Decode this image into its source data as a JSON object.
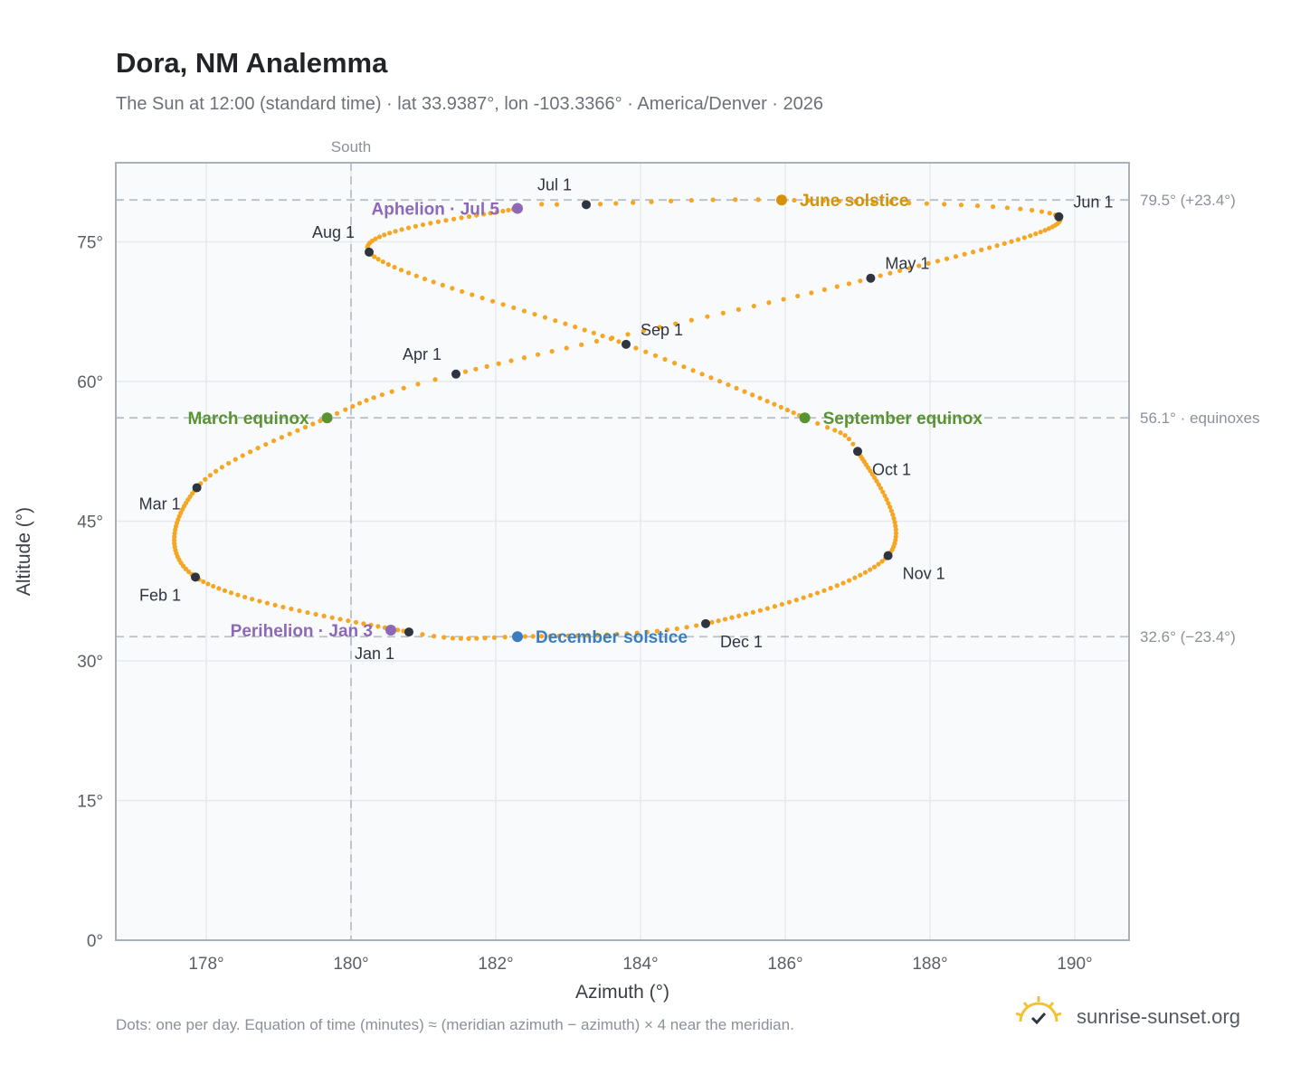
{
  "title": "Dora, NM Analemma",
  "subtitle": "The Sun at 12:00 (standard time) · lat 33.9387°, lon -103.3366° · America/Denver · 2026",
  "footnote": "Dots: one per day. Equation of time (minutes) ≈ (meridian azimuth − azimuth) × 4 near the meridian.",
  "brand": {
    "name": "sunrise-sunset.org",
    "icon": "sun-logo-icon"
  },
  "colors": {
    "path": "#f5a623",
    "month_marker": "#2f3540",
    "solstice_june": "#d4920a",
    "solstice_december": "#3a7ec0",
    "equinox": "#5a9432",
    "apsis": "#8e68b8",
    "reference_line": "#b8c0c8",
    "plot_bg": "#f8fafc",
    "grid": "#e6eaee",
    "frame": "#a8b0ba"
  },
  "chart_data": {
    "type": "scatter",
    "title": "Dora, NM Analemma",
    "xlabel": "Azimuth (°)",
    "ylabel": "Altitude (°)",
    "xlim": [
      176.75,
      190.75
    ],
    "ylim": [
      0,
      83.5
    ],
    "x_ticks": [
      178,
      180,
      182,
      184,
      186,
      188,
      190
    ],
    "x_tick_labels": [
      "178°",
      "180°",
      "182°",
      "184°",
      "186°",
      "188°",
      "190°"
    ],
    "y_ticks": [
      0,
      15,
      30,
      45,
      60,
      75
    ],
    "y_tick_labels": [
      "0°",
      "15°",
      "30°",
      "45°",
      "60°",
      "75°"
    ],
    "grid": true,
    "meridian": {
      "azimuth": 180,
      "label": "South"
    },
    "reference_lines": [
      {
        "altitude": 79.5,
        "label": "79.5° (+23.4°)"
      },
      {
        "altitude": 56.1,
        "label": "56.1° · equinoxes"
      },
      {
        "altitude": 32.6,
        "label": "32.6° (−23.4°)"
      }
    ],
    "daily_path": {
      "description_points": "one dot per day, 365 days",
      "anchors": [
        {
          "day": 0,
          "az": 180.8,
          "alt": 33.1
        },
        {
          "day": 31,
          "az": 177.85,
          "alt": 39.0
        },
        {
          "day": 59,
          "az": 177.87,
          "alt": 48.6
        },
        {
          "day": 78,
          "az": 179.67,
          "alt": 56.1
        },
        {
          "day": 90,
          "az": 181.45,
          "alt": 60.8
        },
        {
          "day": 120,
          "az": 187.18,
          "alt": 71.1
        },
        {
          "day": 151,
          "az": 189.78,
          "alt": 77.7
        },
        {
          "day": 171,
          "az": 185.95,
          "alt": 79.5
        },
        {
          "day": 181,
          "az": 183.25,
          "alt": 79.0
        },
        {
          "day": 184,
          "az": 182.3,
          "alt": 78.6
        },
        {
          "day": 212,
          "az": 180.25,
          "alt": 73.9
        },
        {
          "day": 243,
          "az": 183.8,
          "alt": 64.0
        },
        {
          "day": 265,
          "az": 186.27,
          "alt": 56.1
        },
        {
          "day": 273,
          "az": 187.0,
          "alt": 52.5
        },
        {
          "day": 304,
          "az": 187.42,
          "alt": 41.3
        },
        {
          "day": 334,
          "az": 184.9,
          "alt": 34.0
        },
        {
          "day": 354,
          "az": 182.3,
          "alt": 32.6
        },
        {
          "day": 365,
          "az": 180.8,
          "alt": 33.1
        }
      ]
    },
    "month_markers": [
      {
        "label": "Jan 1",
        "az": 180.8,
        "alt": 33.1,
        "anchor": "below"
      },
      {
        "label": "Feb 1",
        "az": 177.85,
        "alt": 39.0,
        "anchor": "below-left"
      },
      {
        "label": "Mar 1",
        "az": 177.87,
        "alt": 48.6,
        "anchor": "left"
      },
      {
        "label": "Apr 1",
        "az": 181.45,
        "alt": 60.8,
        "anchor": "above-left"
      },
      {
        "label": "May 1",
        "az": 187.18,
        "alt": 71.1,
        "anchor": "above-right"
      },
      {
        "label": "Jun 1",
        "az": 189.78,
        "alt": 77.7,
        "anchor": "above-right"
      },
      {
        "label": "Jul 1",
        "az": 183.25,
        "alt": 79.0,
        "anchor": "above-left"
      },
      {
        "label": "Aug 1",
        "az": 180.25,
        "alt": 73.9,
        "anchor": "above-left"
      },
      {
        "label": "Sep 1",
        "az": 183.8,
        "alt": 64.0,
        "anchor": "above-right"
      },
      {
        "label": "Oct 1",
        "az": 187.0,
        "alt": 52.5,
        "anchor": "below-right"
      },
      {
        "label": "Nov 1",
        "az": 187.42,
        "alt": 41.3,
        "anchor": "below-right"
      },
      {
        "label": "Dec 1",
        "az": 184.9,
        "alt": 34.0,
        "anchor": "below-right"
      }
    ],
    "events": [
      {
        "label": "June solstice",
        "az": 185.95,
        "alt": 79.5,
        "color_key": "solstice_june",
        "side": "right"
      },
      {
        "label": "December solstice",
        "az": 182.3,
        "alt": 32.6,
        "color_key": "solstice_december",
        "side": "right"
      },
      {
        "label": "March equinox",
        "az": 179.67,
        "alt": 56.1,
        "color_key": "equinox",
        "side": "left"
      },
      {
        "label": "September equinox",
        "az": 186.27,
        "alt": 56.1,
        "color_key": "equinox",
        "side": "right"
      },
      {
        "label": "Aphelion · Jul 5",
        "az": 182.3,
        "alt": 78.6,
        "color_key": "apsis",
        "side": "left"
      },
      {
        "label": "Perihelion · Jan 3",
        "az": 180.55,
        "alt": 33.3,
        "color_key": "apsis",
        "side": "left"
      }
    ]
  }
}
